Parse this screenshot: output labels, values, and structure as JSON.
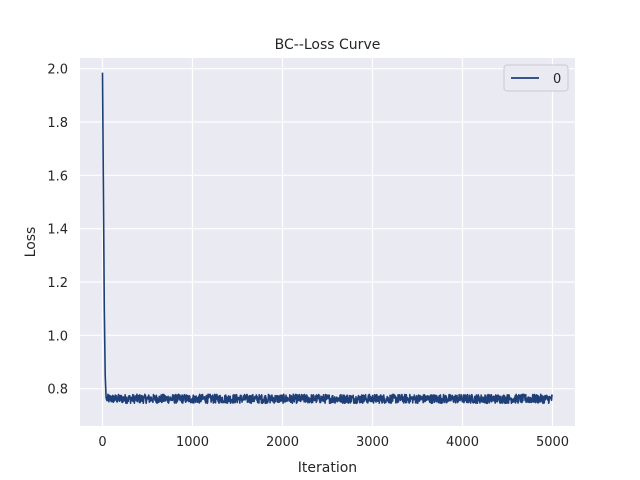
{
  "chart_data": {
    "type": "line",
    "title": "BC--Loss Curve",
    "xlabel": "Iteration",
    "ylabel": "Loss",
    "xlim": [
      -250,
      5250
    ],
    "ylim": [
      0.66,
      2.04
    ],
    "xticks": [
      0,
      1000,
      2000,
      3000,
      4000,
      5000
    ],
    "yticks": [
      0.8,
      1.0,
      1.2,
      1.4,
      1.6,
      1.8,
      2.0
    ],
    "grid": true,
    "legend_position": "top-right",
    "series": [
      {
        "name": "0",
        "color": "#1f3f78",
        "initial": [
          [
            0,
            1.985
          ],
          [
            10,
            1.55
          ],
          [
            20,
            1.1
          ],
          [
            30,
            0.85
          ],
          [
            40,
            0.765
          ],
          [
            50,
            0.755
          ]
        ],
        "noisy_range": {
          "x_start": 50,
          "x_end": 5000,
          "mean": 0.762,
          "amplitude": 0.017,
          "n_points": 1400
        }
      }
    ]
  }
}
